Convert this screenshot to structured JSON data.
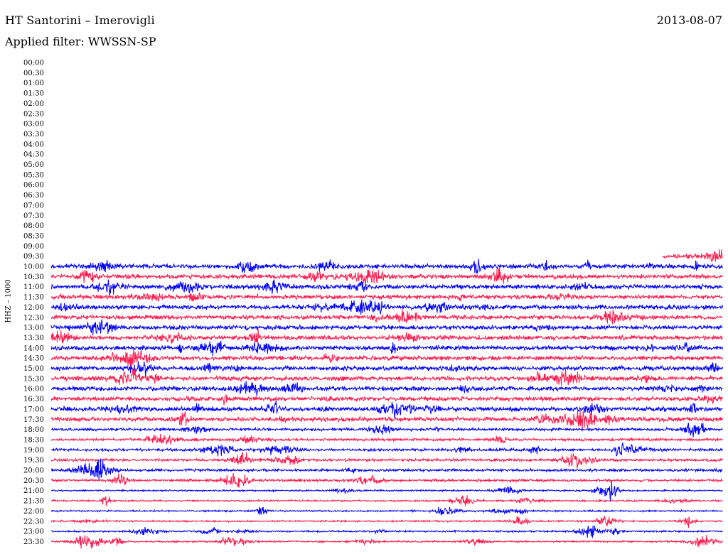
{
  "header": {
    "station": "HT Santorini – Imerovigli",
    "date": "2013-08-07",
    "filter": "Applied filter: WWSSN-SP",
    "channel": "HHZ – 1000"
  },
  "chart_data": {
    "type": "line",
    "title": "HT Santorini – Imerovigli",
    "subtitle": "Applied filter: WWSSN-SP",
    "ylabel": "HHZ – 1000",
    "row_labels": [
      "00:00",
      "00:30",
      "01:00",
      "01:30",
      "02:00",
      "02:30",
      "03:00",
      "03:30",
      "04:00",
      "04:30",
      "05:00",
      "05:30",
      "06:00",
      "06:30",
      "07:00",
      "07:30",
      "08:00",
      "08:30",
      "09:00",
      "09:30",
      "10:00",
      "10:30",
      "11:00",
      "11:30",
      "12:00",
      "12:30",
      "13:00",
      "13:30",
      "14:00",
      "14:30",
      "15:00",
      "15:30",
      "16:00",
      "16:30",
      "17:00",
      "17:30",
      "18:00",
      "18:30",
      "19:00",
      "19:30",
      "20:00",
      "20:30",
      "21:00",
      "21:30",
      "22:00",
      "22:30",
      "23:00",
      "23:30"
    ],
    "first_trace_row": "09:30",
    "trace_start_fraction": 0.91,
    "series_colors": [
      "#ff1a4d",
      "#0000ff"
    ],
    "grid": false,
    "legend": "none"
  }
}
